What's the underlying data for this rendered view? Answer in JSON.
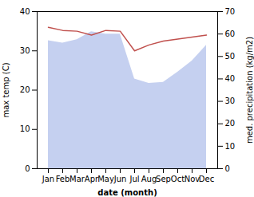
{
  "chart_data": {
    "type": "line",
    "xlabel": "date (month)",
    "ylabel": "max temp (C)",
    "y2label": "med. precipitation (kg/m2)",
    "categories": [
      "Jan",
      "Feb",
      "Mar",
      "Apr",
      "May",
      "Jun",
      "Jul",
      "Aug",
      "Sep",
      "Oct",
      "Nov",
      "Dec"
    ],
    "series": [
      {
        "type": "area",
        "axis": "y2",
        "color": "#c5d0f0",
        "values": [
          57.0,
          56.0,
          57.5,
          61.0,
          60.0,
          60.0,
          40.0,
          38.0,
          38.5,
          43.0,
          48.0,
          55.0
        ]
      },
      {
        "type": "line",
        "axis": "y",
        "color": "#c0504d",
        "values": [
          36.0,
          35.2,
          35.0,
          34.0,
          35.2,
          35.0,
          30.0,
          31.5,
          32.5,
          33.0,
          33.5,
          34.0
        ]
      }
    ],
    "ylim": [
      0,
      40
    ],
    "yticks": [
      0,
      10,
      20,
      30,
      40
    ],
    "y2lim": [
      0,
      70
    ],
    "y2ticks": [
      0,
      10,
      20,
      30,
      40,
      50,
      60,
      70
    ],
    "grid": false
  }
}
